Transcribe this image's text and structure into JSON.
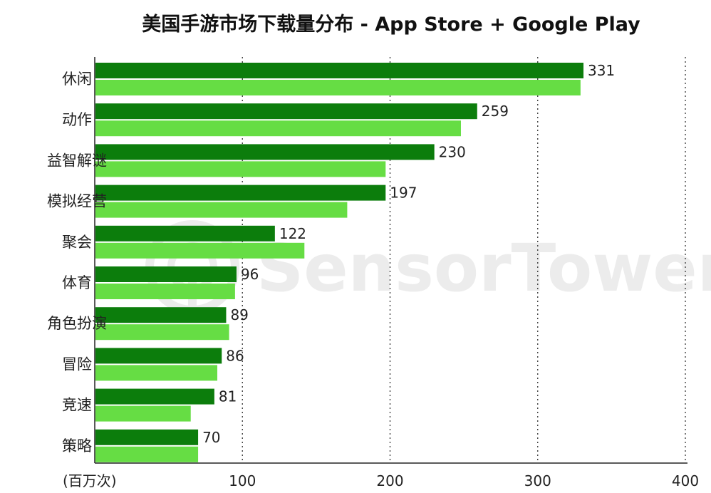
{
  "chart_data": {
    "type": "bar",
    "orientation": "horizontal",
    "title": "美国手游市场下载量分布 - App Store + Google Play",
    "unit_label": "(百万次)",
    "categories": [
      "休闲",
      "动作",
      "益智解谜",
      "模拟经营",
      "聚会",
      "体育",
      "角色扮演",
      "冒险",
      "竞速",
      "策略"
    ],
    "series": [
      {
        "values": [
          331,
          259,
          230,
          197,
          122,
          96,
          89,
          86,
          81,
          70
        ],
        "color": "#0c7d0c",
        "labeled": true
      },
      {
        "values": [
          329,
          248,
          197,
          171,
          142,
          95,
          91,
          83,
          65,
          70
        ],
        "color": "#66dd44",
        "labeled": false
      }
    ],
    "xlim": [
      0,
      400
    ],
    "x_ticks": [
      100,
      200,
      300,
      400
    ],
    "grid": "vertical-dotted",
    "legend": "none"
  },
  "watermark": {
    "text": "SensorTower",
    "icon": "sensortower-logo-icon"
  }
}
